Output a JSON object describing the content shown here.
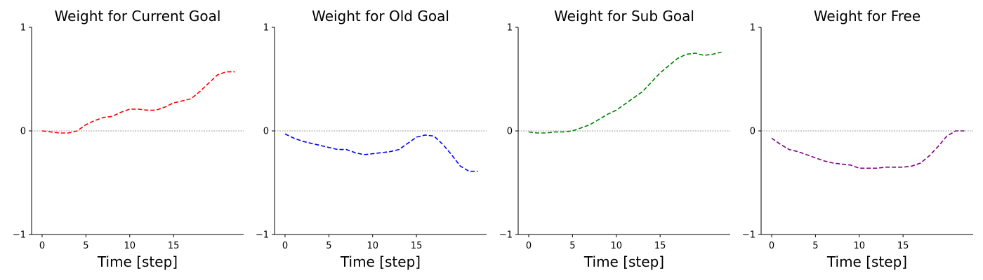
{
  "chart_data": [
    {
      "type": "line",
      "title": "Weight for Current Goal",
      "xlabel": "Time [step]",
      "ylabel": "",
      "xlim": [
        -1.2,
        23
      ],
      "ylim": [
        -1,
        1
      ],
      "xticks": [
        0,
        5,
        10,
        15
      ],
      "yticks": [
        -1,
        0,
        1
      ],
      "reference_line": 0,
      "grid": false,
      "series": [
        {
          "color": "#ff0000",
          "style": "dashed",
          "x": [
            0,
            1,
            2,
            3,
            4,
            5,
            6,
            7,
            8,
            9,
            10,
            11,
            12,
            13,
            14,
            15,
            16,
            17,
            18,
            19,
            20,
            21,
            22
          ],
          "y": [
            0.0,
            -0.01,
            -0.02,
            -0.02,
            0.0,
            0.06,
            0.1,
            0.13,
            0.14,
            0.18,
            0.21,
            0.21,
            0.2,
            0.2,
            0.23,
            0.27,
            0.29,
            0.31,
            0.38,
            0.46,
            0.54,
            0.57,
            0.57
          ]
        }
      ]
    },
    {
      "type": "line",
      "title": "Weight for Old Goal",
      "xlabel": "Time [step]",
      "ylabel": "",
      "xlim": [
        -1.2,
        23
      ],
      "ylim": [
        -1,
        1
      ],
      "xticks": [
        0,
        5,
        10,
        15
      ],
      "yticks": [
        -1,
        0,
        1
      ],
      "reference_line": 0,
      "grid": false,
      "series": [
        {
          "color": "#0000ff",
          "style": "dashed",
          "x": [
            0,
            1,
            2,
            3,
            4,
            5,
            6,
            7,
            8,
            9,
            10,
            11,
            12,
            13,
            14,
            15,
            16,
            17,
            18,
            19,
            20,
            21,
            22
          ],
          "y": [
            -0.03,
            -0.07,
            -0.1,
            -0.12,
            -0.14,
            -0.16,
            -0.18,
            -0.18,
            -0.21,
            -0.23,
            -0.22,
            -0.21,
            -0.2,
            -0.18,
            -0.12,
            -0.06,
            -0.04,
            -0.05,
            -0.13,
            -0.23,
            -0.34,
            -0.39,
            -0.39
          ]
        }
      ]
    },
    {
      "type": "line",
      "title": "Weight for Sub Goal",
      "xlabel": "Time [step]",
      "ylabel": "",
      "xlim": [
        -1.2,
        23
      ],
      "ylim": [
        -1,
        1
      ],
      "xticks": [
        0,
        5,
        10,
        15
      ],
      "yticks": [
        -1,
        0,
        1
      ],
      "reference_line": 0,
      "grid": false,
      "series": [
        {
          "color": "#008000",
          "style": "dashed",
          "x": [
            0,
            1,
            2,
            3,
            4,
            5,
            6,
            7,
            8,
            9,
            10,
            11,
            12,
            13,
            14,
            15,
            16,
            17,
            18,
            19,
            20,
            21,
            22
          ],
          "y": [
            -0.01,
            -0.02,
            -0.02,
            -0.01,
            -0.01,
            0.0,
            0.03,
            0.06,
            0.11,
            0.16,
            0.2,
            0.26,
            0.32,
            0.38,
            0.47,
            0.56,
            0.63,
            0.7,
            0.74,
            0.75,
            0.73,
            0.74,
            0.76
          ]
        }
      ]
    },
    {
      "type": "line",
      "title": "Weight for Free",
      "xlabel": "Time [step]",
      "ylabel": "",
      "xlim": [
        -1.2,
        23
      ],
      "ylim": [
        -1,
        1
      ],
      "xticks": [
        0,
        5,
        10,
        15
      ],
      "yticks": [
        -1,
        0,
        1
      ],
      "reference_line": 0,
      "grid": false,
      "series": [
        {
          "color": "#800080",
          "style": "dashed",
          "x": [
            0,
            1,
            2,
            3,
            4,
            5,
            6,
            7,
            8,
            9,
            10,
            11,
            12,
            13,
            14,
            15,
            16,
            17,
            18,
            19,
            20,
            21,
            22
          ],
          "y": [
            -0.07,
            -0.13,
            -0.18,
            -0.2,
            -0.23,
            -0.26,
            -0.29,
            -0.31,
            -0.32,
            -0.33,
            -0.36,
            -0.36,
            -0.36,
            -0.35,
            -0.35,
            -0.35,
            -0.34,
            -0.31,
            -0.24,
            -0.15,
            -0.05,
            0.0,
            0.0
          ]
        }
      ]
    }
  ]
}
